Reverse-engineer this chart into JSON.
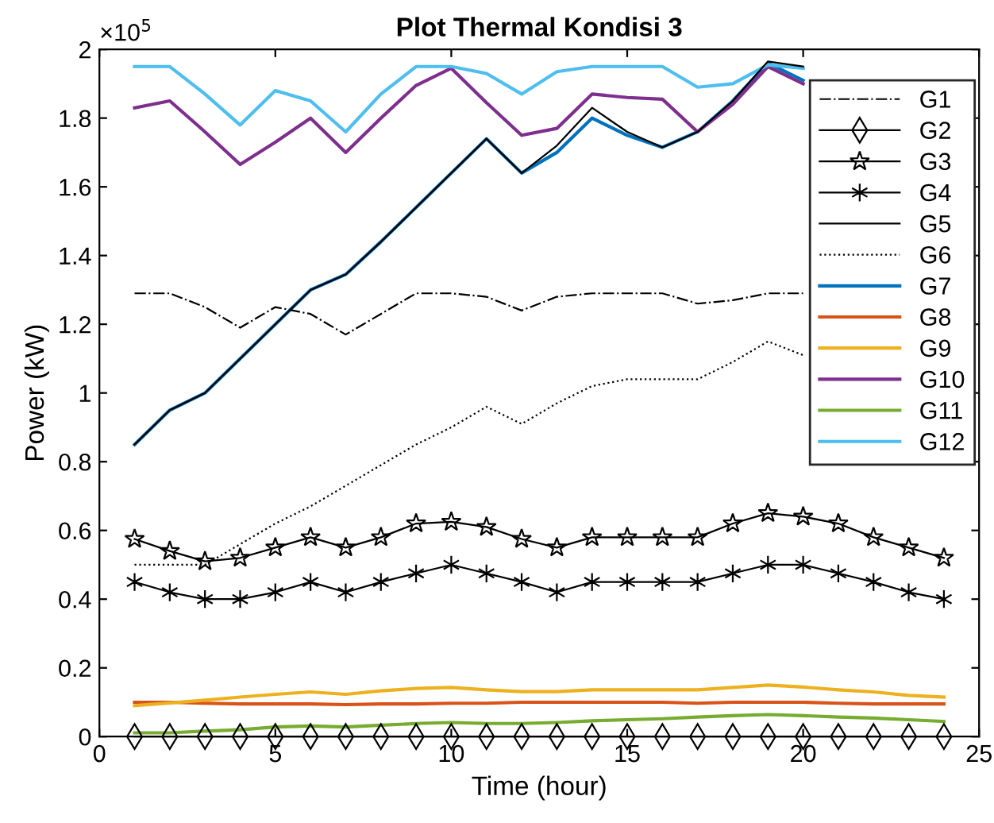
{
  "chart_data": {
    "type": "line",
    "title": "Plot Thermal Kondisi 3",
    "xlabel": "Time (hour)",
    "ylabel": "Power (kW)",
    "annotations": [
      "×10$^{5}$"
    ],
    "x": [
      1,
      2,
      3,
      4,
      5,
      6,
      7,
      8,
      9,
      10,
      11,
      12,
      13,
      14,
      15,
      16,
      17,
      18,
      19,
      20,
      21,
      22,
      23,
      24
    ],
    "xlim": [
      0,
      25
    ],
    "xticks": [
      0,
      5,
      10,
      15,
      20,
      25
    ],
    "ylim": [
      0,
      2
    ],
    "yticks": [
      0,
      0.2,
      0.4,
      0.6,
      0.8,
      1,
      1.2,
      1.4,
      1.6,
      1.8,
      2
    ],
    "grid": false,
    "legend": "top right",
    "series": [
      {
        "name": "G1",
        "color": "#000000",
        "line_style": "dashdot",
        "marker": "none",
        "values": [
          1.29,
          1.29,
          1.25,
          1.19,
          1.25,
          1.23,
          1.17,
          1.23,
          1.29,
          1.29,
          1.28,
          1.24,
          1.28,
          1.29,
          1.29,
          1.29,
          1.26,
          1.27,
          1.29,
          1.29,
          null,
          null,
          null,
          null
        ]
      },
      {
        "name": "G2",
        "color": "#000000",
        "line_style": "solid",
        "marker": "diamond",
        "values": [
          0,
          0,
          0,
          0,
          0,
          0,
          0,
          0,
          0,
          0,
          0,
          0,
          0,
          0,
          0,
          0,
          0,
          0,
          0,
          0,
          0,
          0,
          0,
          0
        ]
      },
      {
        "name": "G3",
        "color": "#000000",
        "line_style": "solid",
        "marker": "star",
        "values": [
          0.575,
          0.54,
          0.51,
          0.52,
          0.55,
          0.58,
          0.55,
          0.58,
          0.62,
          0.625,
          0.61,
          0.575,
          0.55,
          0.58,
          0.58,
          0.58,
          0.58,
          0.62,
          0.65,
          0.64,
          0.62,
          0.58,
          0.55,
          0.52
        ]
      },
      {
        "name": "G4",
        "color": "#000000",
        "line_style": "solid",
        "marker": "cross",
        "values": [
          0.45,
          0.42,
          0.4,
          0.4,
          0.42,
          0.45,
          0.42,
          0.45,
          0.475,
          0.5,
          0.475,
          0.45,
          0.42,
          0.45,
          0.45,
          0.45,
          0.45,
          0.475,
          0.5,
          0.5,
          0.475,
          0.45,
          0.42,
          0.4
        ]
      },
      {
        "name": "G5",
        "color": "#000000",
        "line_style": "solid",
        "marker": "none",
        "values": [
          0.85,
          0.95,
          1.0,
          1.1,
          1.2,
          1.3,
          1.345,
          1.44,
          1.54,
          1.64,
          1.74,
          1.64,
          1.72,
          1.83,
          1.76,
          1.715,
          1.76,
          1.85,
          1.965,
          1.95,
          null,
          null,
          null,
          null
        ]
      },
      {
        "name": "G6",
        "color": "#000000",
        "line_style": "dotted",
        "marker": "none",
        "values": [
          0.5,
          0.5,
          0.5,
          0.56,
          0.62,
          0.67,
          0.73,
          0.79,
          0.85,
          0.9,
          0.96,
          0.91,
          0.97,
          1.02,
          1.04,
          1.04,
          1.04,
          1.09,
          1.15,
          1.11,
          null,
          null,
          null,
          null
        ]
      },
      {
        "name": "G7",
        "color": "#0072bd",
        "line_style": "solid",
        "marker": "none",
        "values": [
          0.85,
          0.95,
          1.0,
          1.1,
          1.2,
          1.3,
          1.345,
          1.44,
          1.54,
          1.64,
          1.74,
          1.64,
          1.7,
          1.8,
          1.75,
          1.715,
          1.76,
          1.85,
          1.96,
          1.91,
          null,
          null,
          null,
          null
        ]
      },
      {
        "name": "G8",
        "color": "#d95319",
        "line_style": "solid",
        "marker": "none",
        "values": [
          0.1,
          0.1,
          0.097,
          0.095,
          0.095,
          0.095,
          0.093,
          0.095,
          0.095,
          0.097,
          0.097,
          0.1,
          0.1,
          0.1,
          0.1,
          0.1,
          0.097,
          0.1,
          0.1,
          0.1,
          0.097,
          0.095,
          0.095,
          0.095
        ]
      },
      {
        "name": "G9",
        "color": "#edb120",
        "line_style": "solid",
        "marker": "none",
        "values": [
          0.09,
          0.098,
          0.106,
          0.115,
          0.123,
          0.13,
          0.123,
          0.133,
          0.14,
          0.143,
          0.136,
          0.131,
          0.131,
          0.136,
          0.136,
          0.136,
          0.136,
          0.143,
          0.15,
          0.144,
          0.136,
          0.13,
          0.12,
          0.115
        ]
      },
      {
        "name": "G10",
        "color": "#7e2f8e",
        "line_style": "solid",
        "marker": "none",
        "values": [
          1.83,
          1.85,
          1.76,
          1.665,
          1.73,
          1.8,
          1.7,
          1.8,
          1.895,
          1.945,
          1.845,
          1.75,
          1.77,
          1.87,
          1.86,
          1.855,
          1.76,
          1.84,
          1.95,
          1.9,
          null,
          null,
          null,
          null
        ]
      },
      {
        "name": "G11",
        "color": "#77ac30",
        "line_style": "solid",
        "marker": "none",
        "values": [
          0.011,
          0.011,
          0.016,
          0.02,
          0.028,
          0.031,
          0.028,
          0.033,
          0.038,
          0.041,
          0.038,
          0.038,
          0.041,
          0.046,
          0.049,
          0.052,
          0.057,
          0.061,
          0.064,
          0.061,
          0.057,
          0.054,
          0.049,
          0.044
        ]
      },
      {
        "name": "G12",
        "color": "#4dbeee",
        "line_style": "solid",
        "marker": "none",
        "values": [
          1.95,
          1.95,
          1.87,
          1.78,
          1.88,
          1.85,
          1.76,
          1.87,
          1.95,
          1.95,
          1.93,
          1.87,
          1.935,
          1.95,
          1.95,
          1.95,
          1.89,
          1.9,
          1.955,
          1.945,
          null,
          null,
          null,
          null
        ]
      }
    ]
  }
}
